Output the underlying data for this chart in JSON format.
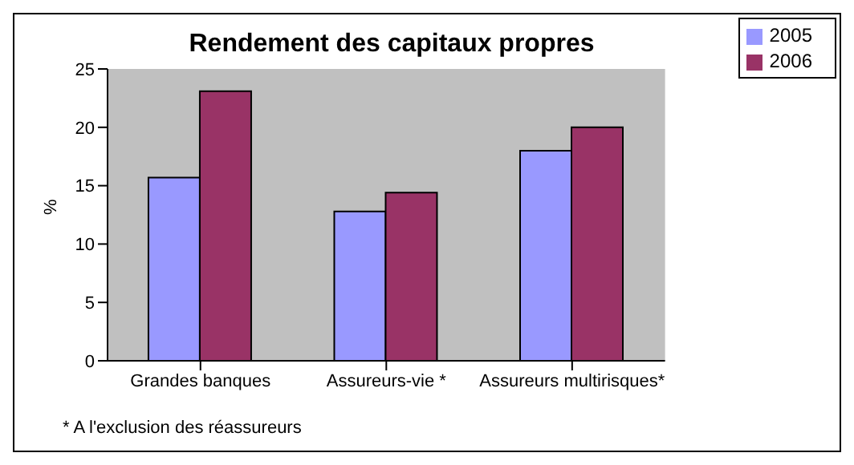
{
  "chart_data": {
    "type": "bar",
    "title": "Rendement des capitaux propres",
    "ylabel": "%",
    "categories": [
      "Grandes banques",
      "Assureurs-vie *",
      "Assureurs multirisques*"
    ],
    "series": [
      {
        "name": "2005",
        "color": "#9999ff",
        "values": [
          15.7,
          12.8,
          18
        ]
      },
      {
        "name": "2006",
        "color": "#993366",
        "values": [
          23.1,
          14.4,
          20
        ]
      }
    ],
    "ylim": [
      0,
      25
    ],
    "yticks": [
      0,
      5,
      10,
      15,
      20,
      25
    ],
    "grid": false,
    "legend": "top right",
    "annotations": [
      "* A l'exclusion des réassureurs"
    ]
  }
}
